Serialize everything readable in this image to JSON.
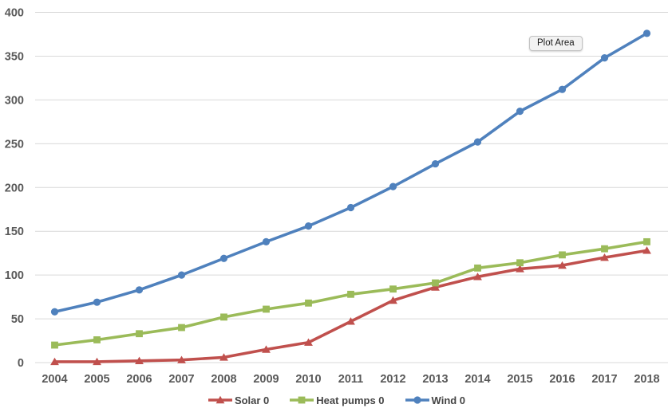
{
  "chart_data": {
    "type": "line",
    "title": "",
    "x_labels": [
      "2004",
      "2005",
      "2006",
      "2007",
      "2008",
      "2009",
      "2010",
      "2011",
      "2012",
      "2013",
      "2014",
      "2015",
      "2016",
      "2017",
      "2018"
    ],
    "series": [
      {
        "name": "Solar 0",
        "color": "#C0504D",
        "marker": "triangle",
        "values": [
          1,
          1,
          2,
          3,
          6,
          15,
          23,
          47,
          71,
          86,
          98,
          107,
          111,
          120,
          128
        ]
      },
      {
        "name": "Heat pumps 0",
        "color": "#9BBB59",
        "marker": "square",
        "values": [
          20,
          26,
          33,
          40,
          52,
          61,
          68,
          78,
          84,
          91,
          108,
          114,
          123,
          130,
          138
        ]
      },
      {
        "name": "Wind 0",
        "color": "#4F81BD",
        "marker": "circle",
        "values": [
          58,
          69,
          83,
          100,
          119,
          138,
          156,
          177,
          201,
          227,
          252,
          287,
          312,
          348,
          376
        ]
      }
    ],
    "ylim": [
      0,
      400
    ],
    "yticks": [
      0,
      50,
      100,
      150,
      200,
      250,
      300,
      350,
      400
    ],
    "xlabel": "",
    "ylabel": "",
    "grid": "horizontal",
    "legend_position": "bottom",
    "plot_area_label": "Plot Area",
    "colors": {
      "grid": "#D9D9D9",
      "axis_text": "#595959",
      "legend_text": "#444444",
      "tooltip_bg": "#F2F2F2",
      "tooltip_border": "#C3C3C3",
      "background": "#FFFFFF"
    }
  }
}
